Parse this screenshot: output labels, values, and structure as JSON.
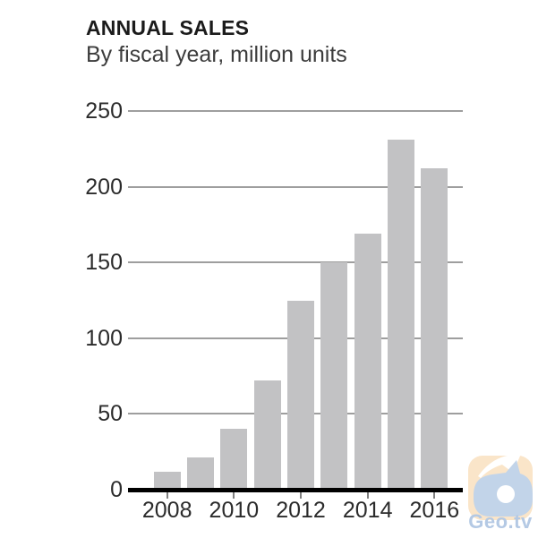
{
  "header": {
    "title": "ANNUAL SALES",
    "subtitle": "By fiscal year, million units"
  },
  "watermark": {
    "label": "Geo.tv"
  },
  "colors": {
    "background": "#ffffff",
    "bar": "#c2c2c4",
    "gridline": "#9e9e9e",
    "baseline": "#000000",
    "title_text": "#1b1b1b",
    "subtitle_text": "#3c3c3c",
    "axis_text": "#2b2b2b",
    "tick_mark": "#808080",
    "logo_square": "#fae5c9",
    "logo_shape": "#c2d4e9",
    "logo_text": "#b4c9e4"
  },
  "chart_data": {
    "type": "bar",
    "title": "ANNUAL SALES",
    "subtitle": "By fiscal year, million units",
    "categories": [
      "2008",
      "2009",
      "2010",
      "2011",
      "2012",
      "2013",
      "2014",
      "2015",
      "2016"
    ],
    "values": [
      12,
      21,
      40,
      72,
      125,
      150,
      169,
      231,
      212
    ],
    "series_name": "Annual sales",
    "xlabel": "Fiscal year",
    "ylabel": "Million units",
    "ylim": [
      0,
      250
    ],
    "yticks": [
      0,
      50,
      100,
      150,
      200,
      250
    ],
    "xtick_labels": [
      "2008",
      "2010",
      "2012",
      "2014",
      "2016"
    ],
    "grid": true,
    "legend": "none",
    "bar_color": "#c2c2c4"
  }
}
